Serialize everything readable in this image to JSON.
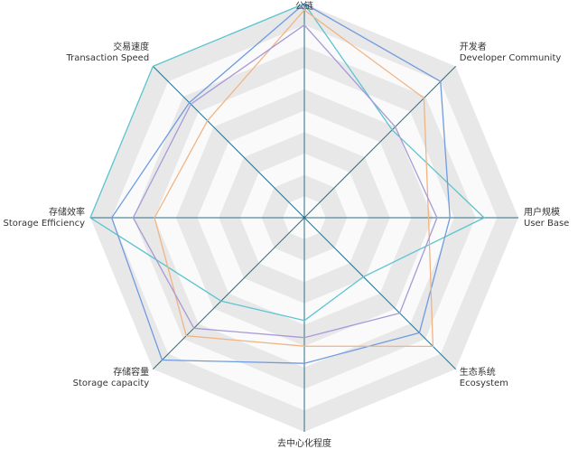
{
  "chart_data": {
    "type": "radar",
    "indicators": [
      {
        "cn": "公链",
        "en": ""
      },
      {
        "cn": "开发者",
        "en": "Developer Community"
      },
      {
        "cn": "用户规模",
        "en": "User Base"
      },
      {
        "cn": "生态系统",
        "en": "Ecosystem"
      },
      {
        "cn": "去中心化程度",
        "en": ""
      },
      {
        "cn": "存储容量",
        "en": "Storage capacity"
      },
      {
        "cn": "存储效率",
        "en": "Storage Efficiency"
      },
      {
        "cn": "交易速度",
        "en": "Transaction Speed"
      }
    ],
    "max": 10,
    "split_number": 10,
    "split_area_colors": [
      "#fafafa",
      "#e8e8e8"
    ],
    "axis_color": "#2a6f86",
    "series": [
      {
        "color": "#5bc4d0",
        "values": [
          10,
          5.8,
          8.4,
          3.9,
          4.8,
          5.5,
          10,
          10
        ]
      },
      {
        "color": "#6f9be0",
        "values": [
          10,
          9.0,
          6.8,
          7.6,
          6.8,
          9.4,
          9.0,
          7.6
        ]
      },
      {
        "color": "#f0b483",
        "values": [
          9.7,
          7.9,
          5.8,
          8.5,
          6.0,
          7.8,
          7.0,
          6.4
        ]
      },
      {
        "color": "#a79ad6",
        "values": [
          9.0,
          6.0,
          6.2,
          6.3,
          5.6,
          7.3,
          8.0,
          7.5
        ]
      }
    ]
  }
}
